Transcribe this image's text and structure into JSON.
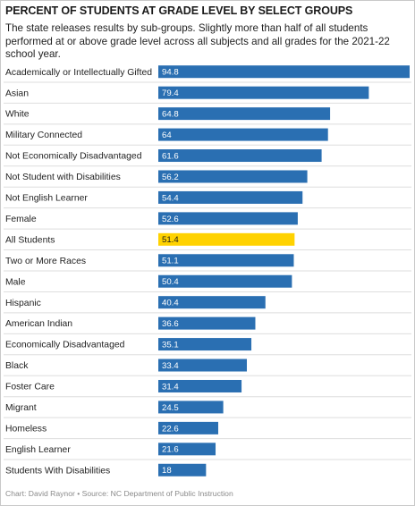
{
  "colors": {
    "bar": "#2a6fb2",
    "highlight": "#ffd200",
    "separator": "#dedede"
  },
  "chart_data": {
    "type": "bar",
    "orientation": "horizontal",
    "title": "PERCENT OF STUDENTS AT GRADE LEVEL BY SELECT GROUPS",
    "subtitle": "The state releases results by sub-groups. Slightly more than half of all students performed at or above grade level across all subjects and all grades for the 2021-22 school year.",
    "xlabel": "",
    "ylabel": "",
    "xlim": [
      0,
      94.8
    ],
    "grid": false,
    "highlight_category": "All Students",
    "categories": [
      "Academically or Intellectually Gifted",
      "Asian",
      "White",
      "Military Connected",
      "Not Economically Disadvantaged",
      "Not Student with Disabilities",
      "Not English Learner",
      "Female",
      "All Students",
      "Two or More Races",
      "Male",
      "Hispanic",
      "American Indian",
      "Economically Disadvantaged",
      "Black",
      "Foster Care",
      "Migrant",
      "Homeless",
      "English Learner",
      "Students With Disabilities"
    ],
    "values": [
      94.8,
      79.4,
      64.8,
      64,
      61.6,
      56.2,
      54.4,
      52.6,
      51.4,
      51.1,
      50.4,
      40.4,
      36.6,
      35.1,
      33.4,
      31.4,
      24.5,
      22.6,
      21.6,
      18
    ],
    "value_labels": [
      "94.8",
      "79.4",
      "64.8",
      "64",
      "61.6",
      "56.2",
      "54.4",
      "52.6",
      "51.4",
      "51.1",
      "50.4",
      "40.4",
      "36.6",
      "35.1",
      "33.4",
      "31.4",
      "24.5",
      "22.6",
      "21.6",
      "18"
    ],
    "credit": "Chart: David Raynor • Source: NC Department of Public Instruction"
  }
}
